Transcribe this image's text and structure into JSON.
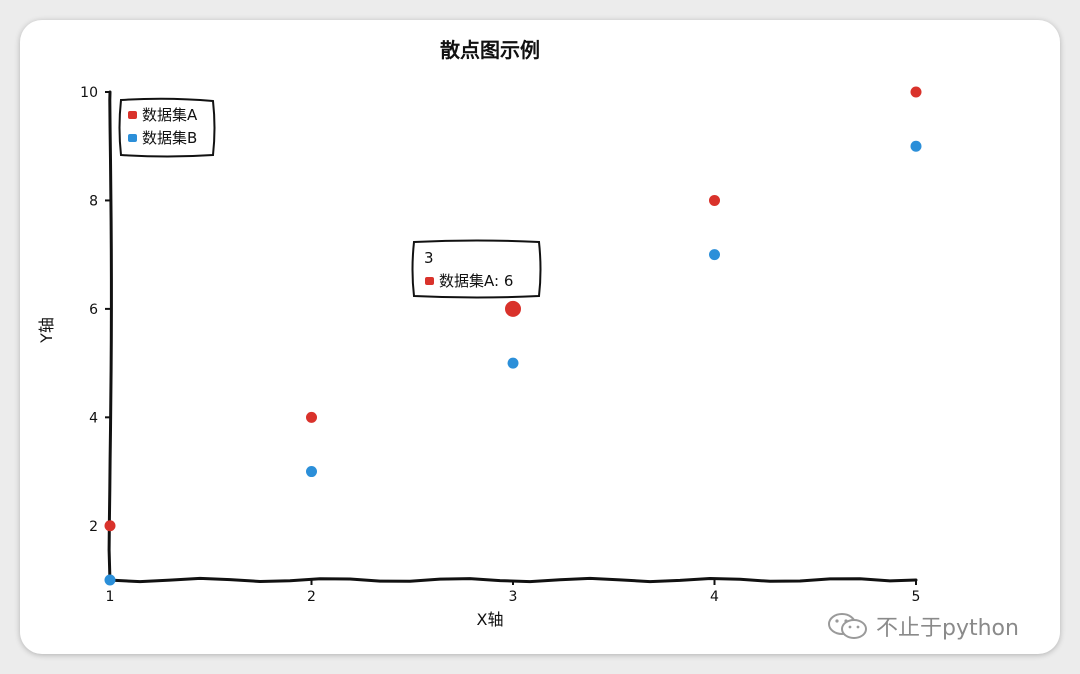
{
  "chart_data": {
    "type": "scatter",
    "title": "散点图示例",
    "xlabel": "X轴",
    "ylabel": "Y轴",
    "xlim": [
      1,
      5
    ],
    "ylim": [
      1,
      10
    ],
    "xticks": [
      1,
      2,
      3,
      4,
      5
    ],
    "yticks": [
      2,
      4,
      6,
      8,
      10
    ],
    "grid": false,
    "legend": "top-left",
    "series": [
      {
        "name": "数据集A",
        "color": "#d9322b",
        "x": [
          1,
          2,
          3,
          4,
          5
        ],
        "y": [
          2,
          4,
          6,
          8,
          10
        ]
      },
      {
        "name": "数据集B",
        "color": "#2b8fd9",
        "x": [
          1,
          2,
          3,
          4,
          5
        ],
        "y": [
          1,
          3,
          5,
          7,
          9
        ]
      }
    ],
    "tooltip": {
      "title": "3",
      "series": "数据集A",
      "value": "6",
      "label": "数据集A: 6"
    }
  },
  "watermark": {
    "text": "不止于python",
    "icon": "wechat-icon"
  }
}
